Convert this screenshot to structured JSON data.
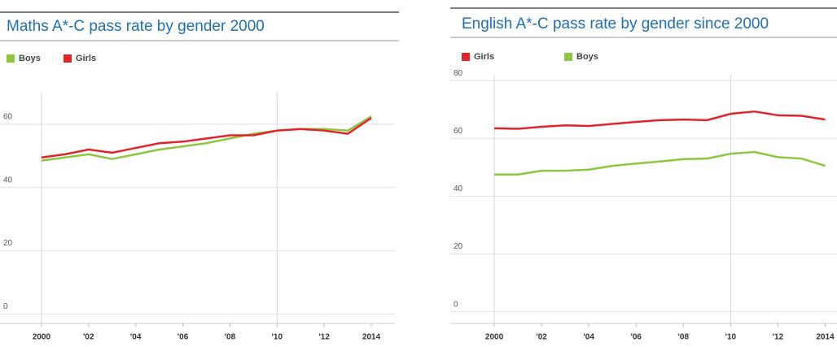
{
  "chart_data": [
    {
      "type": "line",
      "title": "Maths A*-C pass rate by gender 2000",
      "x": [
        2000,
        2001,
        2002,
        2003,
        2004,
        2005,
        2006,
        2007,
        2008,
        2009,
        2010,
        2011,
        2012,
        2013,
        2014
      ],
      "series": [
        {
          "name": "Boys",
          "color": "#8dc63f",
          "values": [
            48.5,
            49.5,
            50.5,
            49,
            50.5,
            52,
            53,
            54,
            55.5,
            57,
            58,
            58.5,
            58.5,
            58,
            62.5
          ]
        },
        {
          "name": "Girls",
          "color": "#e3232c",
          "values": [
            49.5,
            50.5,
            52,
            51,
            52.5,
            54,
            54.5,
            55.5,
            56.5,
            56.5,
            58,
            58.5,
            58,
            57,
            62
          ]
        }
      ],
      "xlim": [
        1999,
        2015
      ],
      "xticks": [
        2000,
        {
          "value": 2002,
          "label": "'02"
        },
        {
          "value": 2004,
          "label": "'04"
        },
        {
          "value": 2006,
          "label": "'06"
        },
        {
          "value": 2008,
          "label": "'08"
        },
        {
          "value": 2010,
          "label": "'10"
        },
        {
          "value": 2012,
          "label": "'12"
        },
        2014
      ],
      "ylim": [
        -3,
        70
      ],
      "yticks": [
        0,
        20,
        40,
        60
      ],
      "grid": true,
      "vline": 2010
    },
    {
      "type": "line",
      "title": "English A*-C pass rate by gender since 2000",
      "x": [
        2000,
        2001,
        2002,
        2003,
        2004,
        2005,
        2006,
        2007,
        2008,
        2009,
        2010,
        2011,
        2012,
        2013,
        2014
      ],
      "series": [
        {
          "name": "Girls",
          "color": "#e3232c",
          "values": [
            63.5,
            63.3,
            64,
            64.5,
            64.3,
            65,
            65.7,
            66.3,
            66.5,
            66.3,
            68.5,
            69.3,
            68,
            67.8,
            66.5
          ]
        },
        {
          "name": "Boys",
          "color": "#8dc63f",
          "values": [
            47.5,
            47.5,
            48.8,
            48.8,
            49.2,
            50.5,
            51.3,
            52,
            52.8,
            53,
            54.7,
            55.3,
            53.5,
            53,
            50.5
          ]
        }
      ],
      "xlim": [
        1999,
        2014.5
      ],
      "xticks": [
        2000,
        {
          "value": 2002,
          "label": "'02"
        },
        {
          "value": 2004,
          "label": "'04"
        },
        {
          "value": 2006,
          "label": "'06"
        },
        {
          "value": 2008,
          "label": "'08"
        },
        {
          "value": 2010,
          "label": "'10"
        },
        {
          "value": 2012,
          "label": "'12"
        },
        2014
      ],
      "ylim": [
        -4,
        82
      ],
      "yticks": [
        0,
        20,
        40,
        60,
        80
      ],
      "grid": true,
      "vline": 2010
    }
  ]
}
